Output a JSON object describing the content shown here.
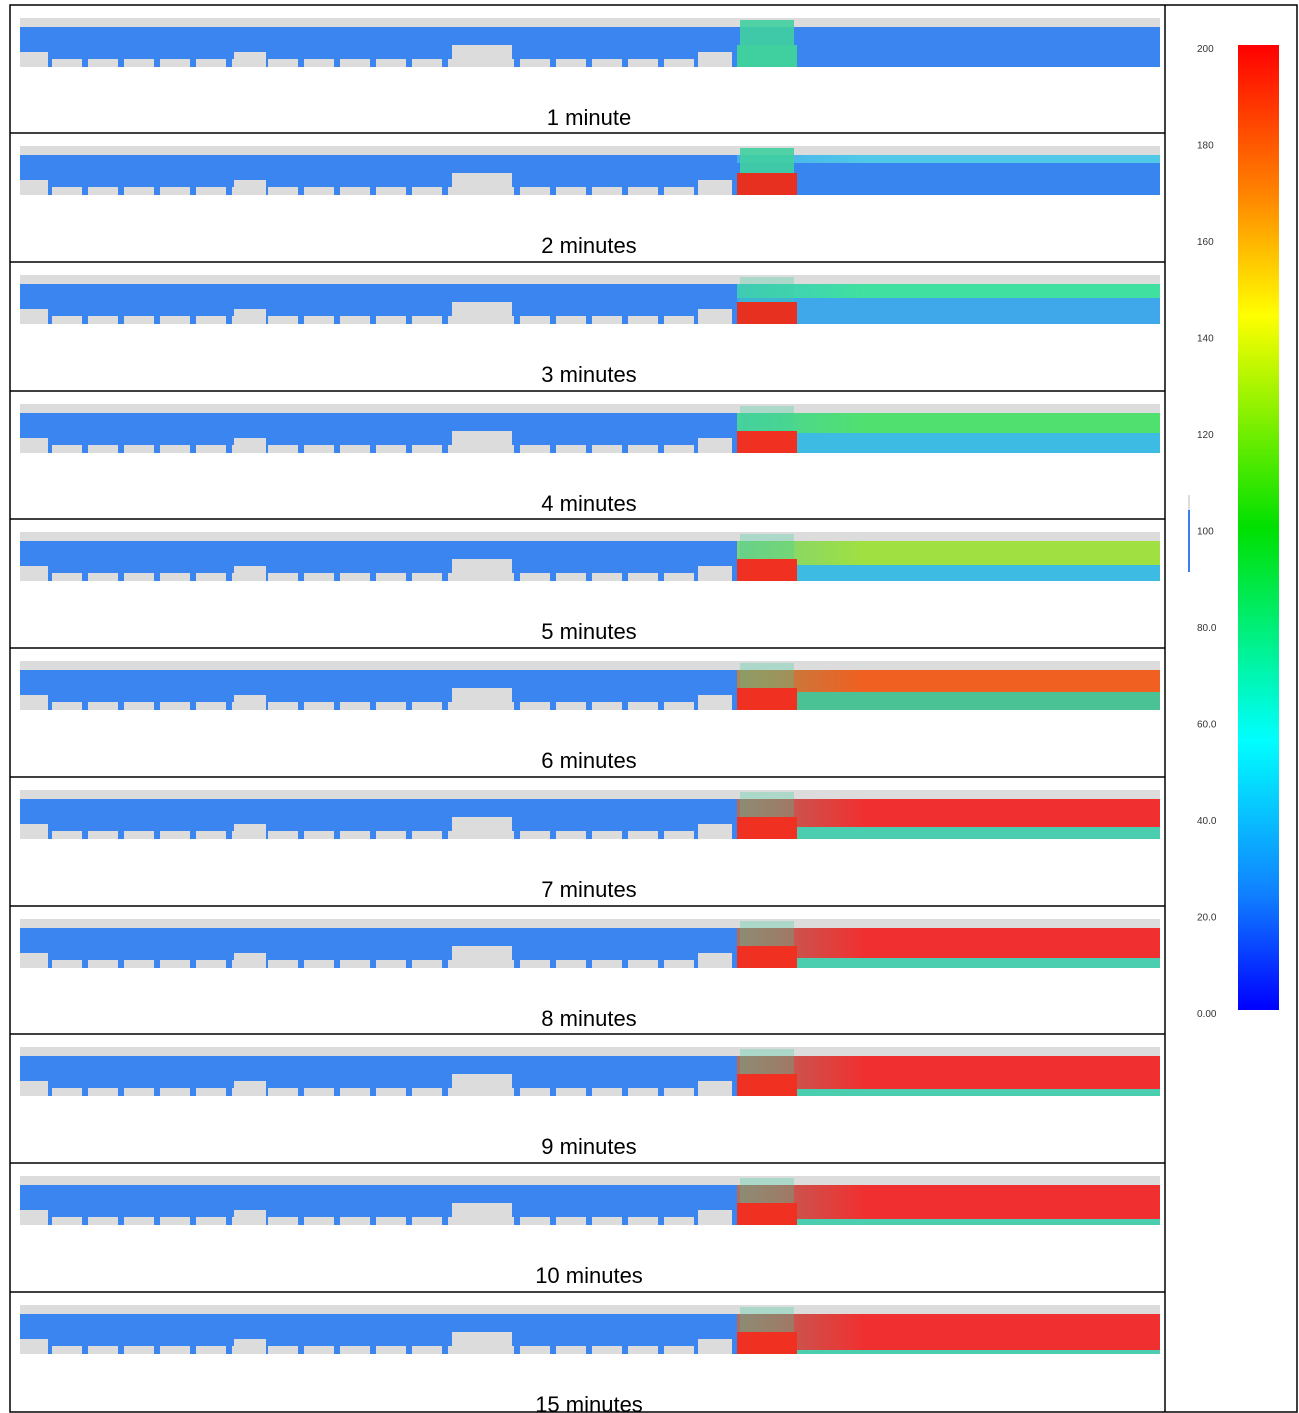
{
  "panels": [
    {
      "label": "1 minute"
    },
    {
      "label": "2 minutes"
    },
    {
      "label": "3 minutes"
    },
    {
      "label": "4 minutes"
    },
    {
      "label": "5 minutes"
    },
    {
      "label": "6 minutes"
    },
    {
      "label": "7 minutes"
    },
    {
      "label": "8 minutes"
    },
    {
      "label": "9 minutes"
    },
    {
      "label": "10 minutes"
    },
    {
      "label": "15 minutes"
    }
  ],
  "colorbar": {
    "ticks": [
      "200",
      "180",
      "160",
      "140",
      "120",
      "100",
      "80.0",
      "60.0",
      "40.0",
      "20.0",
      "0.00"
    ]
  }
}
